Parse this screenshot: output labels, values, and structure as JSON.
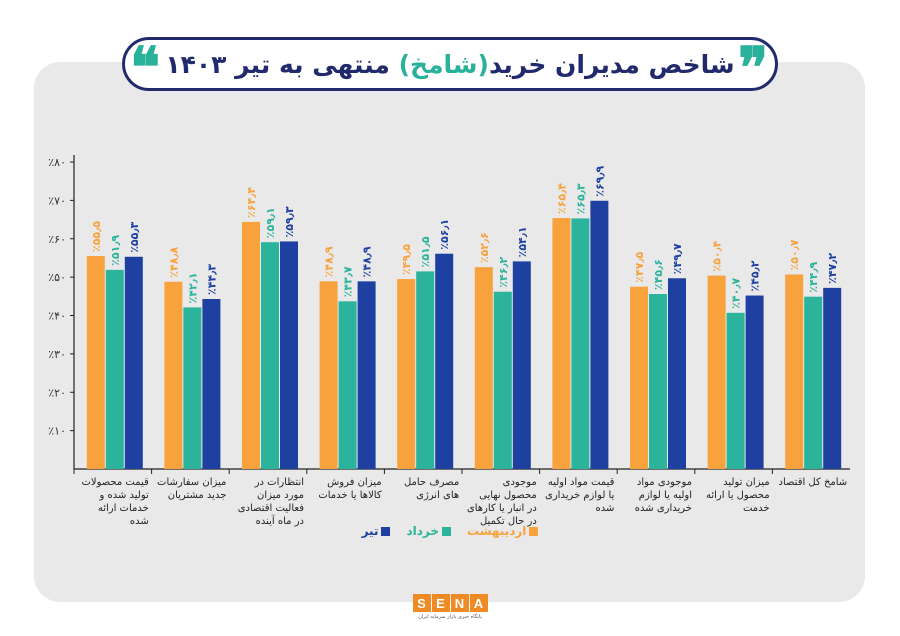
{
  "title": {
    "before": "شاخص مدیران خرید",
    "highlight": "(شامخ)",
    "after": " منتهی به تیر ۱۴۰۳"
  },
  "quotes": {
    "left": "❝",
    "right": "❞"
  },
  "colors": {
    "ordibehesht": "#f7a23c",
    "khordad": "#2bb39b",
    "tir": "#1e40a0",
    "title": "#222a6e"
  },
  "logo": {
    "letters": [
      "S",
      "E",
      "N",
      "A"
    ],
    "sub": "پایگاه خبری بازار سرمایه ایران"
  },
  "chart_data": {
    "type": "bar",
    "ylim": [
      0,
      80
    ],
    "yticks": [
      {
        "v": 10,
        "label": "٪۱۰"
      },
      {
        "v": 20,
        "label": "٪۲۰"
      },
      {
        "v": 30,
        "label": "٪۳۰"
      },
      {
        "v": 40,
        "label": "٪۴۰"
      },
      {
        "v": 50,
        "label": "٪۵۰"
      },
      {
        "v": 60,
        "label": "٪۶۰"
      },
      {
        "v": 70,
        "label": "٪۷۰"
      },
      {
        "v": 80,
        "label": "٪۸۰"
      }
    ],
    "categories": [
      "شامخ کل اقتصاد",
      "میزان تولید محصول یا ارائه خدمت",
      "موجودی مواد اولیه یا لوازم خریداری شده",
      "قیمت مواد اولیه یا لوازم خریداری شده",
      "موجودی محصول نهایی در انبار یا کارهای در حال تکمیل",
      "مصرف حامل های انرژی",
      "میزان فروش کالاها یا خدمات",
      "انتظارات در مورد میزان فعالیت اقتصادی در ماه آینده",
      "میزان سفارشات جدید مشتریان",
      "قیمت محصولات تولید شده و خدمات ارائه شده"
    ],
    "series": [
      {
        "name": "اردیبهشت",
        "color": "#f7a23c",
        "values": [
          50.7,
          50.4,
          47.5,
          65.4,
          52.6,
          49.5,
          48.9,
          64.4,
          48.8,
          55.5
        ],
        "labels": [
          "٪۵۰٫۷",
          "٪۵۰٫۴",
          "٪۴۷٫۵",
          "٪۶۵٫۴",
          "٪۵۲٫۶",
          "٪۴۹٫۵",
          "٪۴۸٫۹",
          "٪۶۴٫۴",
          "٪۴۸٫۸",
          "٪۵۵٫۵"
        ]
      },
      {
        "name": "خرداد",
        "color": "#2bb39b",
        "values": [
          44.9,
          40.7,
          45.6,
          65.3,
          46.2,
          51.5,
          43.7,
          59.1,
          42.1,
          51.9
        ],
        "labels": [
          "٪۴۴٫۹",
          "٪۴۰٫۷",
          "٪۴۵٫۶",
          "٪۶۵٫۳",
          "٪۴۶٫۲",
          "٪۵۱٫۵",
          "٪۴۳٫۷",
          "٪۵۹٫۱",
          "٪۴۲٫۱",
          "٪۵۱٫۹"
        ]
      },
      {
        "name": "تیر",
        "color": "#1e40a0",
        "values": [
          47.2,
          45.2,
          49.7,
          69.9,
          54.1,
          56.1,
          48.9,
          59.3,
          44.3,
          55.3
        ],
        "labels": [
          "٪۴۷٫۲",
          "٪۴۵٫۲",
          "٪۴۹٫۷",
          "٪۶۹٫۹",
          "٪۵۴٫۱",
          "٪۵۶٫۱",
          "٪۴۸٫۹",
          "٪۵۹٫۳",
          "٪۴۴٫۳",
          "٪۵۵٫۳"
        ]
      }
    ],
    "legend_position": "bottom-center",
    "grid": false
  }
}
